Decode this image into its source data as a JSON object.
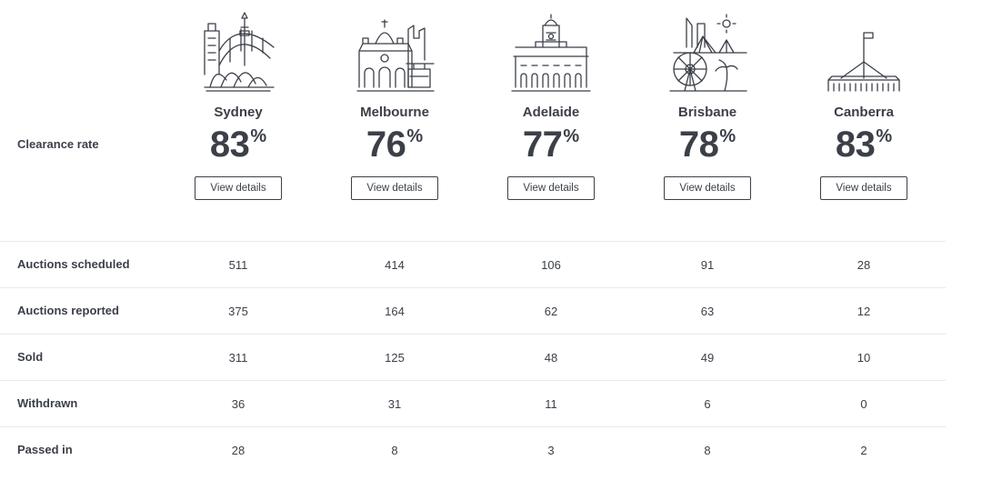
{
  "clearance_label": "Clearance rate",
  "view_details_label": "View details",
  "percent_symbol": "%",
  "cities": [
    {
      "name": "Sydney",
      "rate": "83",
      "icon": "sydney-skyline-icon"
    },
    {
      "name": "Melbourne",
      "rate": "76",
      "icon": "melbourne-skyline-icon"
    },
    {
      "name": "Adelaide",
      "rate": "77",
      "icon": "adelaide-skyline-icon"
    },
    {
      "name": "Brisbane",
      "rate": "78",
      "icon": "brisbane-skyline-icon"
    },
    {
      "name": "Canberra",
      "rate": "83",
      "icon": "canberra-skyline-icon"
    }
  ],
  "rows": [
    {
      "label": "Auctions scheduled",
      "values": [
        "511",
        "414",
        "106",
        "91",
        "28"
      ]
    },
    {
      "label": "Auctions reported",
      "values": [
        "375",
        "164",
        "62",
        "63",
        "12"
      ]
    },
    {
      "label": "Sold",
      "values": [
        "311",
        "125",
        "48",
        "49",
        "10"
      ]
    },
    {
      "label": "Withdrawn",
      "values": [
        "36",
        "31",
        "11",
        "6",
        "0"
      ]
    },
    {
      "label": "Passed in",
      "values": [
        "28",
        "8",
        "3",
        "8",
        "2"
      ]
    }
  ]
}
